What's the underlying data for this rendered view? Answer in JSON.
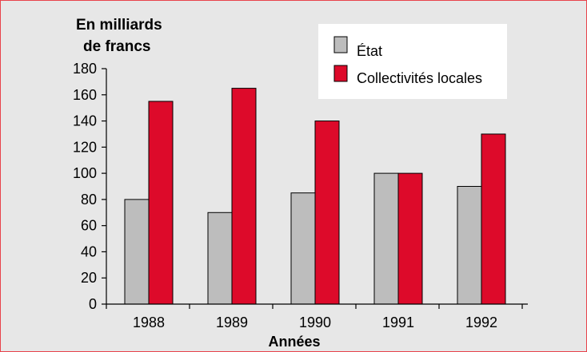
{
  "chart_data": {
    "type": "bar",
    "ylabel_line1": "En milliards",
    "ylabel_line2": "de francs",
    "xlabel": "Années",
    "categories": [
      "1988",
      "1989",
      "1990",
      "1991",
      "1992"
    ],
    "series": [
      {
        "name": "État",
        "color": "#bdbdbd",
        "values": [
          80,
          70,
          85,
          100,
          90
        ]
      },
      {
        "name": "Collectivités locales",
        "color": "#dd0a2a",
        "values": [
          155,
          165,
          140,
          100,
          130
        ]
      }
    ],
    "ylim": [
      0,
      180
    ],
    "yticks": [
      "0",
      "20",
      "40",
      "60",
      "80",
      "100",
      "120",
      "140",
      "160",
      "180"
    ],
    "grid": false,
    "legend": "top-right",
    "background": "#e7e7e7",
    "border_color": "#e8434b"
  }
}
